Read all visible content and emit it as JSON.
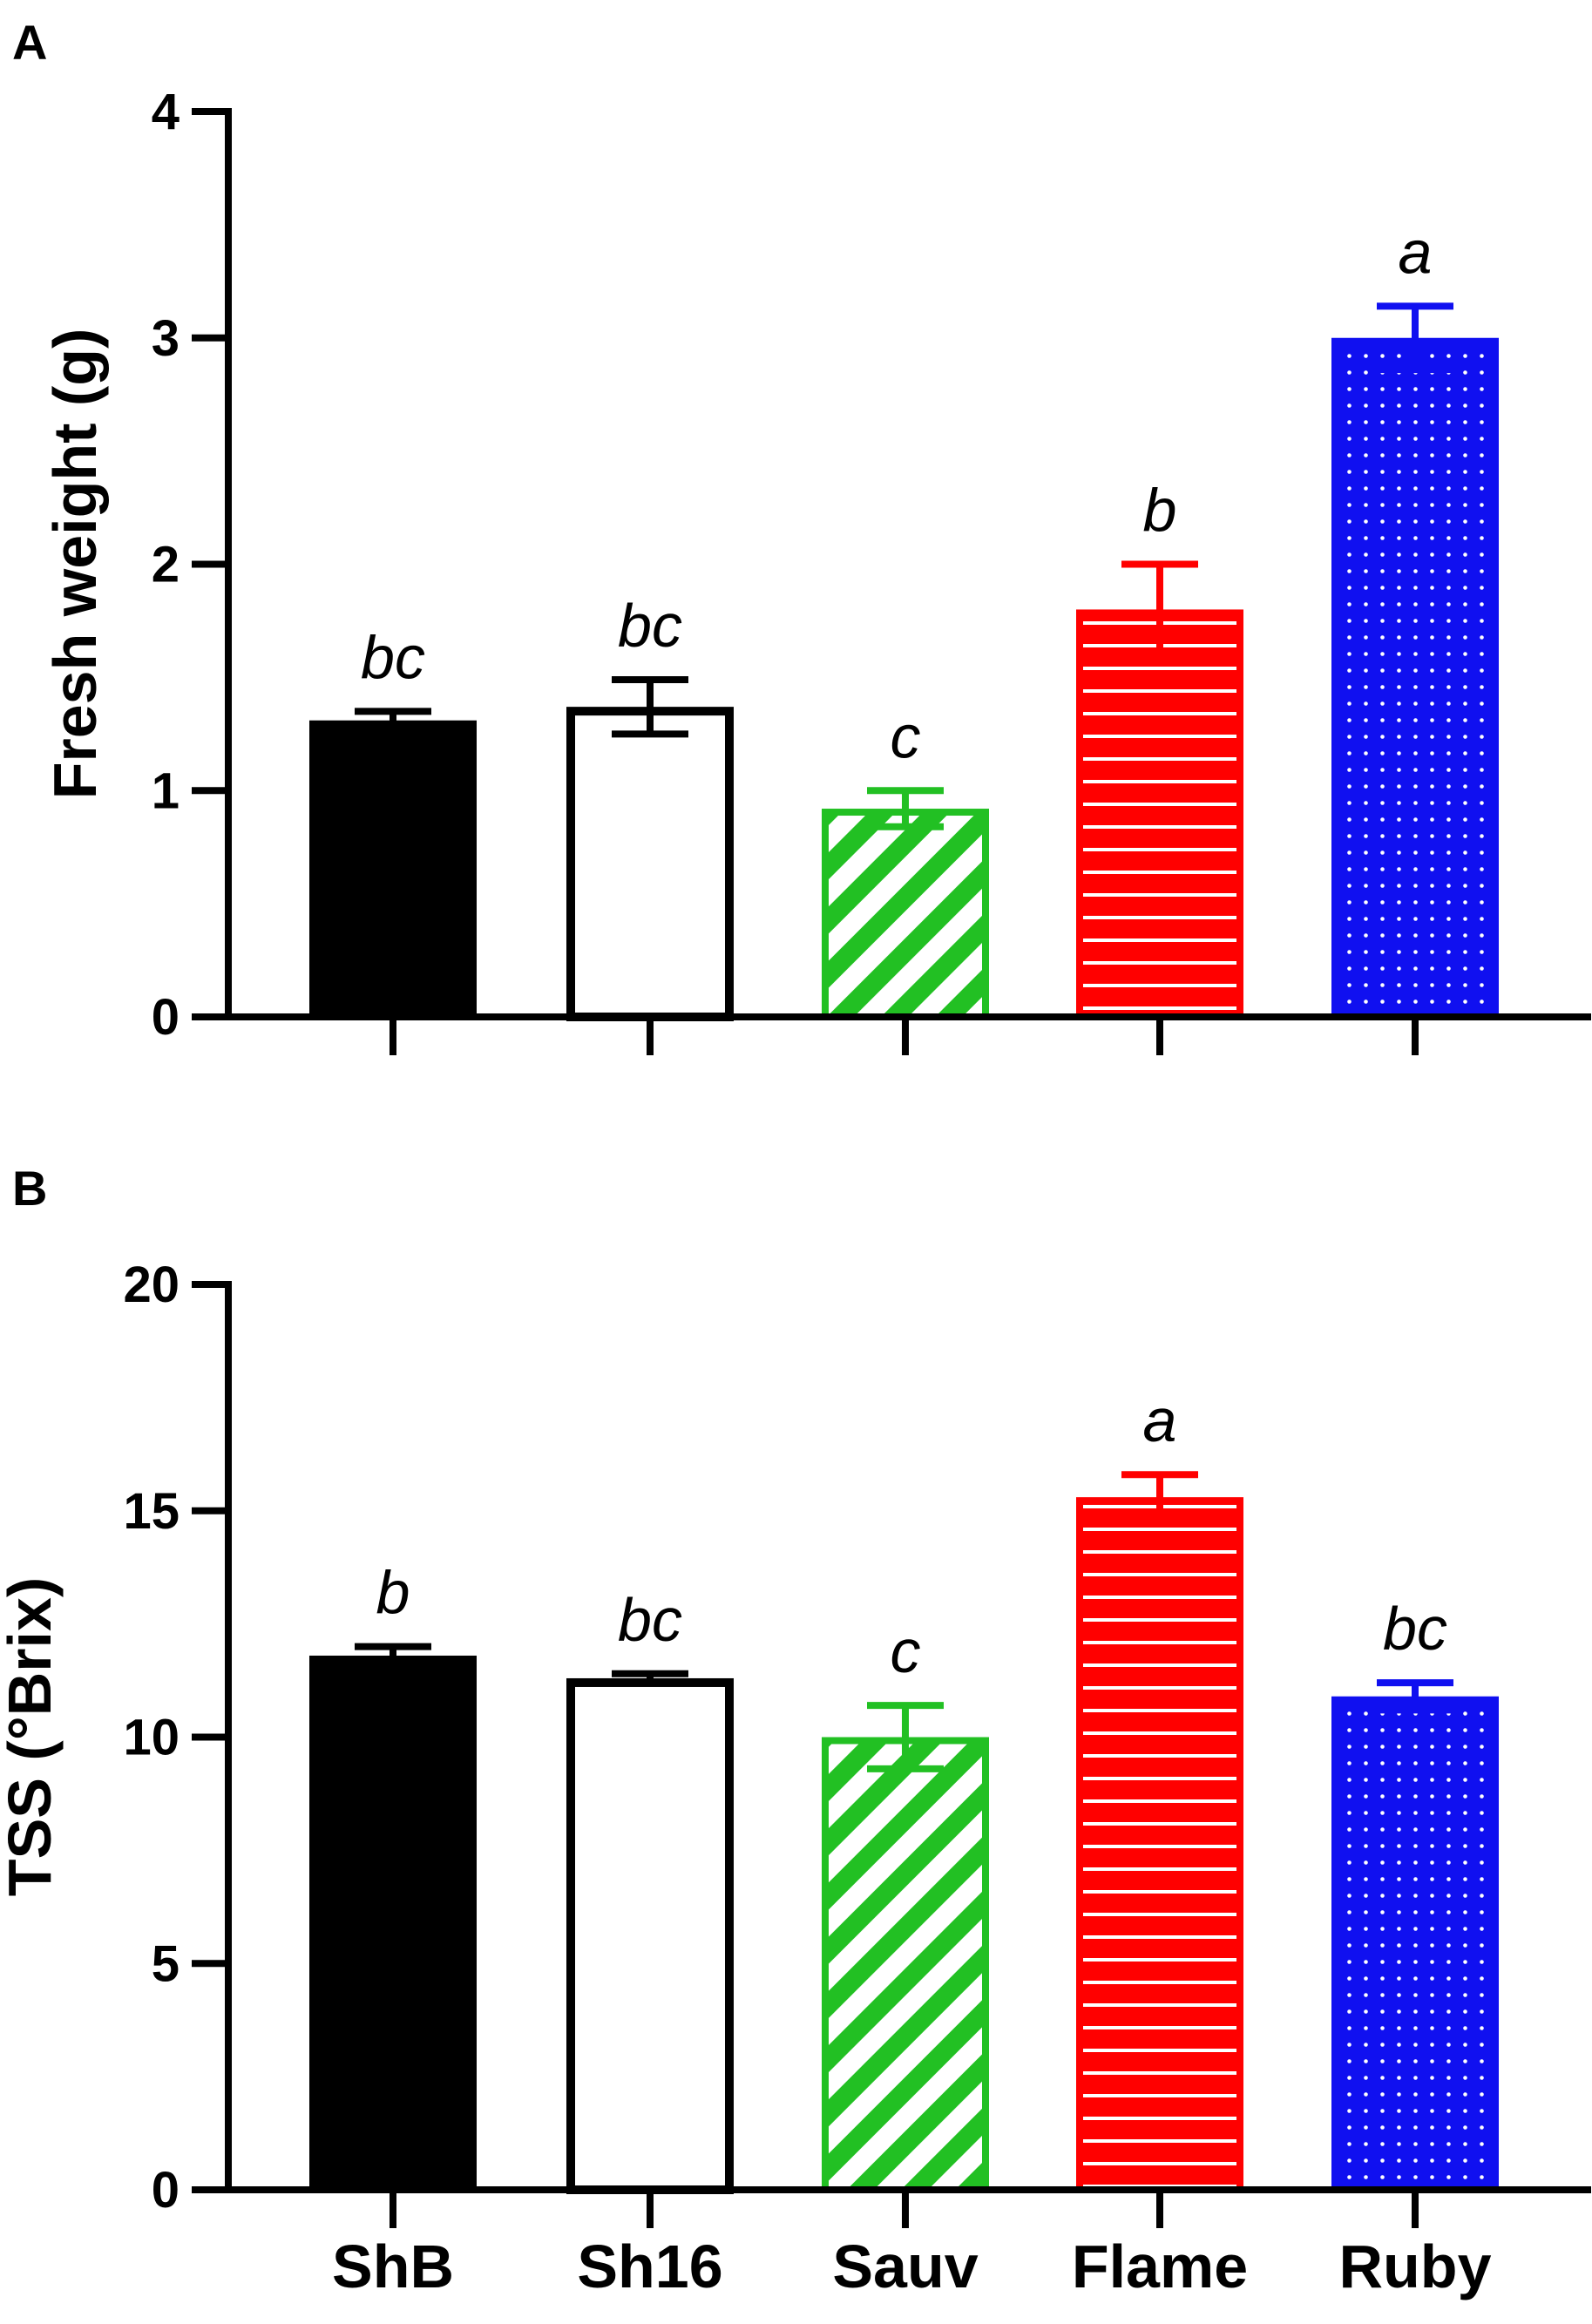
{
  "chart_data": [
    {
      "type": "bar",
      "panel": "A",
      "title": "",
      "xlabel": "",
      "ylabel": "Fresh weight (g)",
      "ylim": [
        0,
        4
      ],
      "yticks": [
        0,
        1,
        2,
        3,
        4
      ],
      "categories": [
        "ShB",
        "Sh16",
        "Sauv",
        "Flame",
        "Ruby"
      ],
      "values": [
        1.31,
        1.37,
        0.92,
        1.8,
        3.0
      ],
      "errors": [
        0.04,
        0.12,
        0.08,
        0.2,
        0.14
      ],
      "significance": [
        "bc",
        "bc",
        "c",
        "b",
        "a"
      ],
      "show_category_labels": false
    },
    {
      "type": "bar",
      "panel": "B",
      "title": "",
      "xlabel": "",
      "ylabel": "TSS (°Brix)",
      "ylim": [
        0,
        20
      ],
      "yticks": [
        0,
        5,
        10,
        15,
        20
      ],
      "categories": [
        "ShB",
        "Sh16",
        "Sauv",
        "Flame",
        "Ruby"
      ],
      "values": [
        11.8,
        11.3,
        10.0,
        15.3,
        10.9
      ],
      "errors": [
        0.2,
        0.1,
        0.7,
        0.5,
        0.3
      ],
      "significance": [
        "b",
        "bc",
        "c",
        "a",
        "bc"
      ],
      "show_category_labels": true
    }
  ],
  "styles": {
    "fills": [
      "solid-black",
      "hollow-white",
      "diagonal-stripes",
      "horizontal-stripes",
      "dots"
    ],
    "colors": [
      "#000000",
      "#000000",
      "#22c023",
      "#ff0000",
      "#1010f0"
    ]
  }
}
